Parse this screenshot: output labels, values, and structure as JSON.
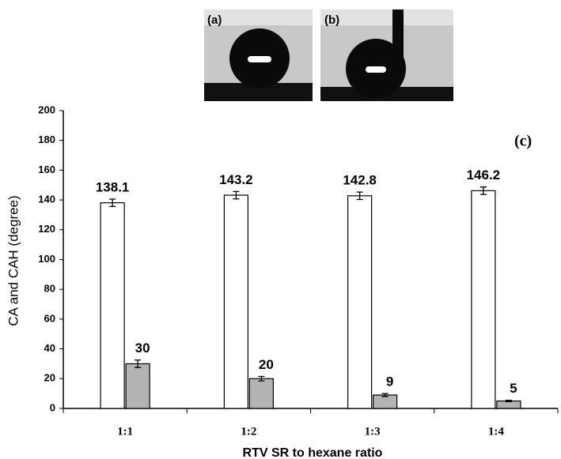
{
  "panel_labels": [
    "(a)",
    "(b)"
  ],
  "chart_data": {
    "type": "bar",
    "annotation": "(c)",
    "x_label": "RTV SR to hexane ratio",
    "y_label": "CA and CAH (degree)",
    "categories": [
      "1:1",
      "1:2",
      "1:3",
      "1:4"
    ],
    "series": [
      {
        "color": "#ffffff",
        "values": [
          138.1,
          143.2,
          142.8,
          146.2
        ],
        "errors": [
          2.5,
          2.5,
          2.5,
          2.5
        ]
      },
      {
        "color": "#b3b3b3",
        "values": [
          30,
          20,
          9,
          5
        ],
        "errors": [
          2.5,
          1.5,
          1,
          0.5
        ]
      }
    ],
    "ylim": [
      0,
      200
    ],
    "yticks": [
      0,
      20,
      40,
      60,
      80,
      100,
      120,
      140,
      160,
      180,
      200
    ]
  }
}
